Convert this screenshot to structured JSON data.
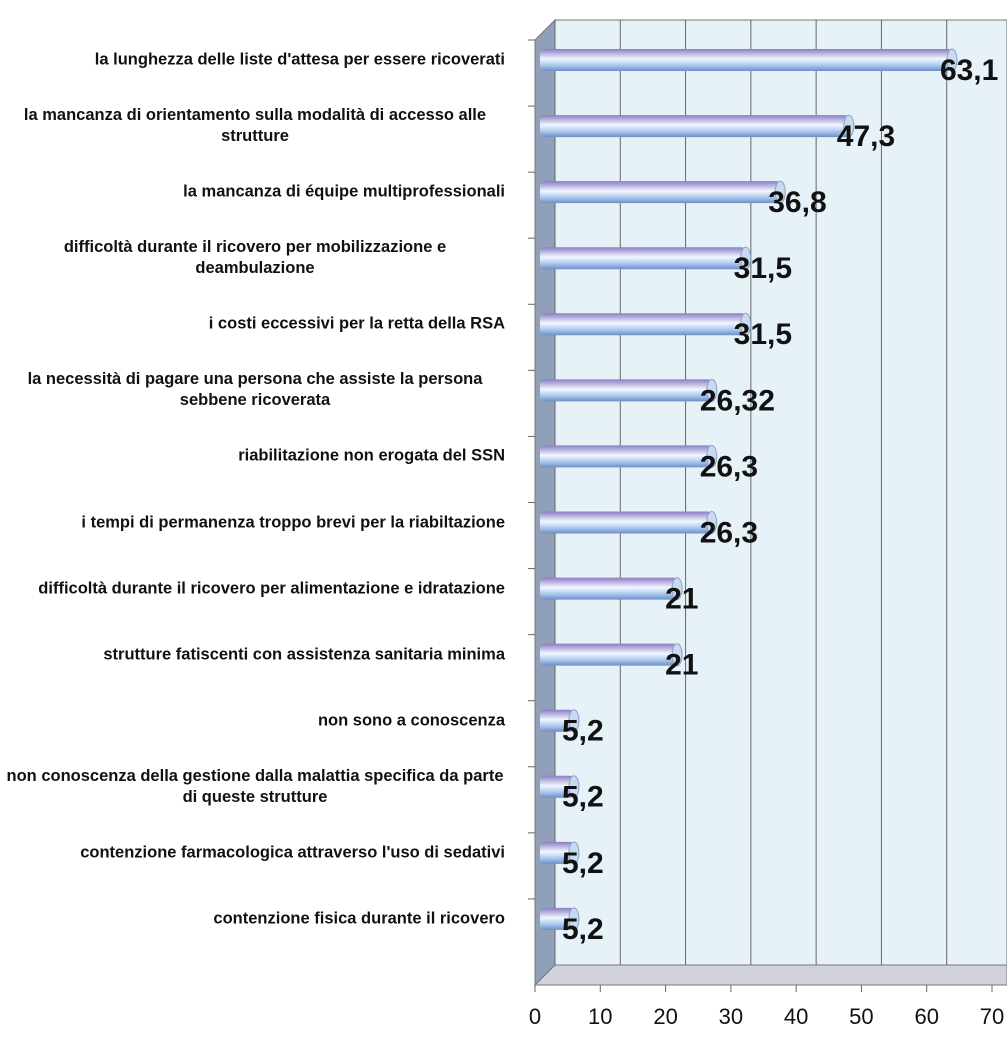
{
  "chart_data": {
    "type": "bar",
    "orientation": "horizontal",
    "categories": [
      "la lunghezza delle liste d'attesa per essere ricoverati",
      "la mancanza di orientamento sulla modalità di accesso alle strutture",
      "la mancanza di équipe multiprofessionali",
      "difficoltà durante il ricovero per mobilizzazione e deambulazione",
      "i costi eccessivi per la retta della RSA",
      "la necessità di pagare una persona che assiste la persona sebbene ricoverata",
      "riabilitazione non erogata del SSN",
      "i tempi di permanenza troppo brevi per la riabiltazione",
      "difficoltà durante il ricovero per alimentazione e idratazione",
      "strutture fatiscenti con assistenza sanitaria minima",
      "non sono a conoscenza",
      "non conoscenza della gestione dalla malattia specifica da parte di queste strutture",
      "contenzione farmacologica attraverso l'uso di sedativi",
      "contenzione fisica durante il ricovero"
    ],
    "values": [
      63.1,
      47.3,
      36.8,
      31.5,
      31.5,
      26.32,
      26.3,
      26.3,
      21,
      21,
      5.2,
      5.2,
      5.2,
      5.2
    ],
    "value_labels": [
      "63,1",
      "47,3",
      "36,8",
      "31,5",
      "31,5",
      "26,32",
      "26,3",
      "26,3",
      "21",
      "21",
      "5,2",
      "5,2",
      "5,2",
      "5,2"
    ],
    "xlim": [
      0,
      70
    ],
    "xticks": [
      0,
      10,
      20,
      30,
      40,
      50,
      60,
      70
    ],
    "grid": true,
    "color": "#8fb3e3"
  }
}
